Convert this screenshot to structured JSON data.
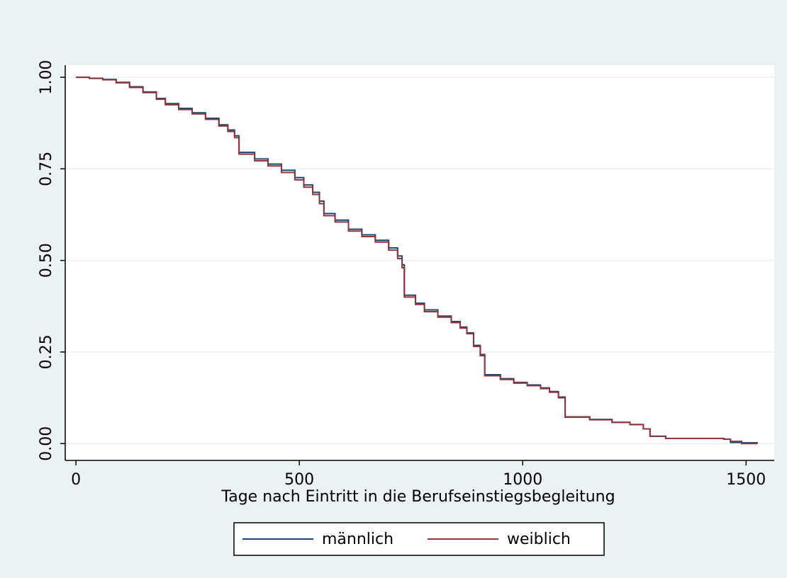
{
  "chart_data": {
    "type": "line",
    "step": "post",
    "xlabel": "Tage nach Eintritt in die Berufseinstiegsbegleitung",
    "x": [
      0,
      30,
      60,
      90,
      120,
      150,
      180,
      200,
      230,
      260,
      290,
      320,
      340,
      355,
      365,
      400,
      430,
      460,
      490,
      510,
      530,
      545,
      555,
      580,
      610,
      640,
      670,
      700,
      720,
      730,
      735,
      760,
      780,
      810,
      840,
      860,
      875,
      890,
      905,
      915,
      950,
      980,
      1010,
      1040,
      1060,
      1080,
      1095,
      1150,
      1200,
      1240,
      1270,
      1285,
      1320,
      1450,
      1465,
      1490,
      1525
    ],
    "series": [
      {
        "name": "männlich",
        "color": "#1a476f",
        "values": [
          1.0,
          0.997,
          0.994,
          0.986,
          0.974,
          0.96,
          0.942,
          0.928,
          0.915,
          0.903,
          0.888,
          0.87,
          0.856,
          0.84,
          0.795,
          0.777,
          0.763,
          0.746,
          0.726,
          0.706,
          0.686,
          0.662,
          0.628,
          0.61,
          0.585,
          0.57,
          0.555,
          0.534,
          0.512,
          0.488,
          0.405,
          0.383,
          0.365,
          0.348,
          0.333,
          0.318,
          0.302,
          0.268,
          0.243,
          0.188,
          0.177,
          0.167,
          0.16,
          0.152,
          0.142,
          0.127,
          0.073,
          0.066,
          0.058,
          0.052,
          0.04,
          0.02,
          0.014,
          0.012,
          0.003,
          0.002,
          0.0
        ]
      },
      {
        "name": "weiblich",
        "color": "#90353b",
        "values": [
          1.0,
          0.997,
          0.993,
          0.985,
          0.972,
          0.958,
          0.94,
          0.925,
          0.912,
          0.9,
          0.885,
          0.867,
          0.852,
          0.835,
          0.79,
          0.772,
          0.758,
          0.74,
          0.72,
          0.7,
          0.68,
          0.655,
          0.622,
          0.605,
          0.58,
          0.565,
          0.55,
          0.528,
          0.505,
          0.48,
          0.4,
          0.38,
          0.36,
          0.345,
          0.33,
          0.315,
          0.3,
          0.265,
          0.24,
          0.185,
          0.175,
          0.165,
          0.158,
          0.15,
          0.14,
          0.125,
          0.072,
          0.065,
          0.058,
          0.052,
          0.04,
          0.02,
          0.014,
          0.012,
          0.006,
          0.0,
          0.0
        ]
      }
    ],
    "xlim": [
      -24,
      1563
    ],
    "xticks": [
      0,
      500,
      1000,
      1500
    ],
    "ylim": [
      -0.046,
      1.033
    ],
    "yticks": [
      {
        "value": 0,
        "label": "0.00"
      },
      {
        "value": 0.25,
        "label": "0.25"
      },
      {
        "value": 0.5,
        "label": "0.50"
      },
      {
        "value": 0.75,
        "label": "0.75"
      },
      {
        "value": 1,
        "label": "1.00"
      }
    ],
    "grid": true,
    "legend": "bottom"
  }
}
